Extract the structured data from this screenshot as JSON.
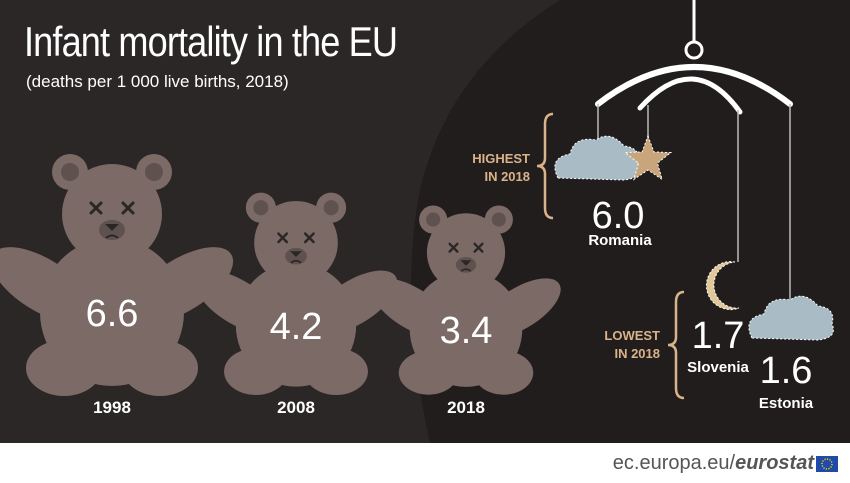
{
  "title": "Infant mortality in the EU",
  "subtitle": "(deaths per 1 000 live births, 2018)",
  "footer": {
    "site": "ec.europa.eu/",
    "brand": "eurostat"
  },
  "colors": {
    "background": "#2b2727",
    "bear": "#7b6a66",
    "bear_dark": "#5f514e",
    "accent": "#d9b38a",
    "cloud": "#a9bcc6",
    "star": "#c9a57c",
    "moon": "#e0c89a"
  },
  "chart_data": [
    {
      "type": "bar",
      "categories": [
        "1998",
        "2008",
        "2018"
      ],
      "values": [
        6.6,
        4.2,
        3.4
      ],
      "value_labels": [
        "6.6",
        "4.2",
        "3.4"
      ]
    },
    {
      "type": "table",
      "groups": [
        {
          "label_line1": "HIGHEST",
          "label_line2": "IN 2018",
          "entries": [
            {
              "country": "Romania",
              "value": 6.0,
              "value_label": "6.0",
              "icon": "star-icon"
            }
          ]
        },
        {
          "label_line1": "LOWEST",
          "label_line2": "IN 2018",
          "entries": [
            {
              "country": "Slovenia",
              "value": 1.7,
              "value_label": "1.7",
              "icon": "moon-icon"
            },
            {
              "country": "Estonia",
              "value": 1.6,
              "value_label": "1.6",
              "icon": "cloud-icon"
            }
          ]
        }
      ]
    }
  ]
}
